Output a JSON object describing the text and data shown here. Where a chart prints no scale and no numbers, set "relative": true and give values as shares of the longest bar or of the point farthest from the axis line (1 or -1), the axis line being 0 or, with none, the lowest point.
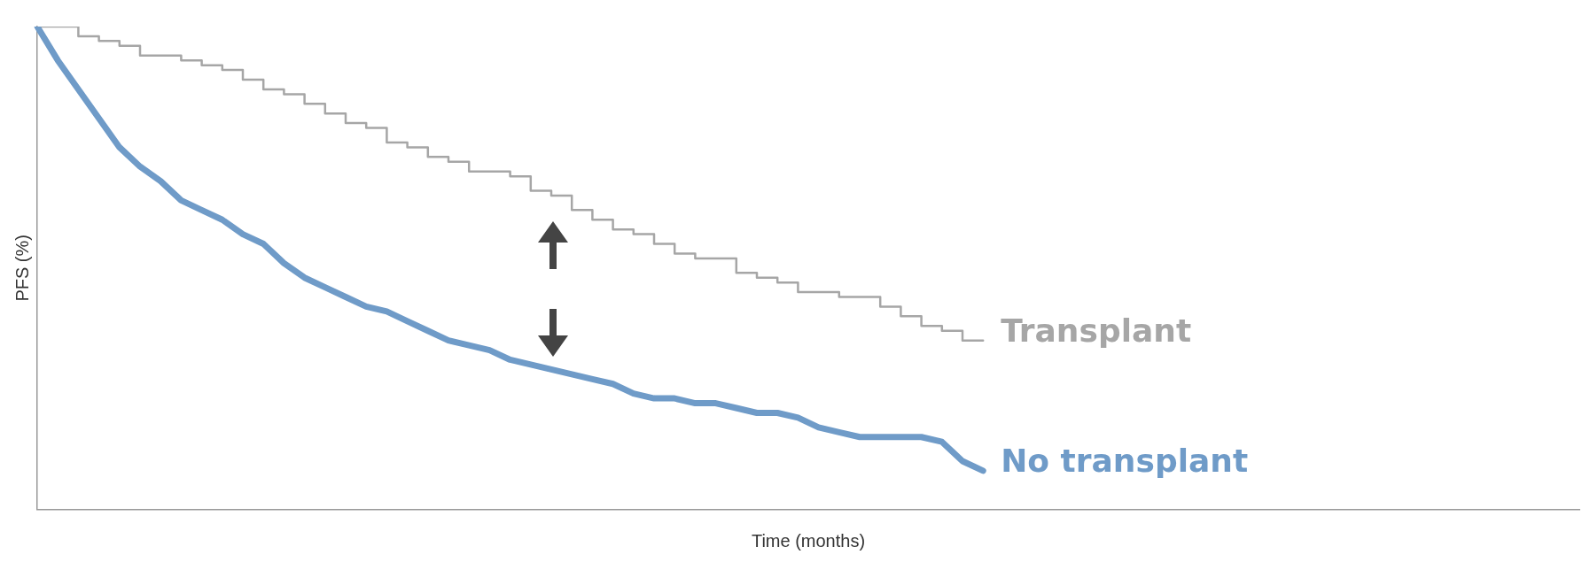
{
  "chart_data": {
    "type": "line",
    "relative": true,
    "xlabel": "Time (months)",
    "ylabel": "PFS (%)",
    "legend": false,
    "grid": false,
    "marker": "none",
    "categories": [
      null,
      null,
      null,
      null,
      null,
      null,
      null,
      null,
      null,
      null,
      null,
      null,
      null,
      null,
      null,
      null,
      null,
      null,
      null,
      null,
      null,
      null,
      null,
      null,
      null,
      null,
      null,
      null,
      null,
      null,
      null,
      null,
      null,
      null,
      null,
      null,
      null,
      null,
      null,
      null,
      null,
      null,
      null,
      null,
      null,
      null,
      null,
      null,
      null,
      null,
      null,
      null,
      null,
      null,
      null,
      null,
      null,
      null,
      null,
      null,
      null,
      null,
      null,
      null,
      null,
      null,
      null,
      null,
      null,
      null,
      null,
      null,
      null,
      null,
      null,
      null
    ],
    "series": [
      {
        "name": "Transplant",
        "type": "step",
        "color": "#a6a6a6",
        "values": [
          1.0,
          1.0,
          0.98,
          0.97,
          0.96,
          0.94,
          0.94,
          0.93,
          0.92,
          0.91,
          0.89,
          0.87,
          0.86,
          0.84,
          0.82,
          0.8,
          0.79,
          0.76,
          0.75,
          0.73,
          0.72,
          0.7,
          0.7,
          0.69,
          0.66,
          0.65,
          0.62,
          0.6,
          0.58,
          0.57,
          0.55,
          0.53,
          0.52,
          0.52,
          0.49,
          0.48,
          0.47,
          0.45,
          0.45,
          0.44,
          0.44,
          0.42,
          0.4,
          0.38,
          0.37,
          0.35,
          0.35,
          null,
          null,
          null,
          null,
          null,
          null,
          null,
          null,
          null,
          null,
          null,
          null,
          null,
          null,
          null,
          null,
          null,
          null,
          null,
          null,
          null,
          null,
          null,
          null,
          null,
          null,
          null,
          null,
          null
        ]
      },
      {
        "name": "No transplant",
        "color": "#6f9bc8",
        "values": [
          1.0,
          0.93,
          0.87,
          0.81,
          0.75,
          0.71,
          0.68,
          0.64,
          0.62,
          0.6,
          0.57,
          0.55,
          0.51,
          0.48,
          0.46,
          0.44,
          0.42,
          0.41,
          0.39,
          0.37,
          0.35,
          0.34,
          0.33,
          0.31,
          0.3,
          0.29,
          0.28,
          0.27,
          0.26,
          0.24,
          0.23,
          0.23,
          0.22,
          0.22,
          0.21,
          0.2,
          0.2,
          0.19,
          0.17,
          0.16,
          0.15,
          0.15,
          0.15,
          0.15,
          0.14,
          0.1,
          0.08,
          null,
          null,
          null,
          null,
          null,
          null,
          null,
          null,
          null,
          null,
          null,
          null,
          null,
          null,
          null,
          null,
          null,
          null,
          null,
          null,
          null,
          null,
          null,
          null,
          null,
          null,
          null,
          null,
          null
        ]
      }
    ]
  }
}
